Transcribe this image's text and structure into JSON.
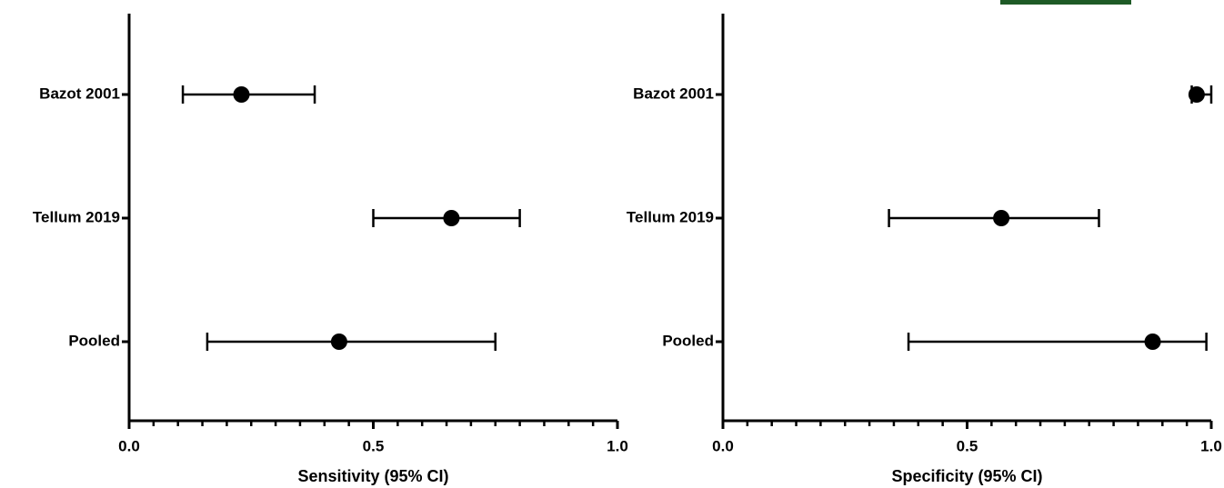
{
  "chart_data": [
    {
      "type": "forest",
      "x_label": "Sensitivity (95% CI)",
      "categories": [
        "Bazot 2001",
        "Tellum 2019",
        "Pooled"
      ],
      "values": [
        0.23,
        0.66,
        0.43
      ],
      "lower": [
        0.11,
        0.5,
        0.16
      ],
      "upper": [
        0.38,
        0.8,
        0.75
      ],
      "color": "#000000",
      "xlim": [
        0,
        1
      ],
      "xticks": [
        {
          "value": 0,
          "label": "0.0"
        },
        {
          "value": 0.5,
          "label": "0.5"
        },
        {
          "value": 1,
          "label": "1.0"
        }
      ],
      "xminorticks": [
        0.05,
        0.1,
        0.15,
        0.2,
        0.25,
        0.3,
        0.35,
        0.4,
        0.45,
        0.55,
        0.6,
        0.65,
        0.7,
        0.75,
        0.8,
        0.85,
        0.9,
        0.95
      ]
    },
    {
      "type": "forest",
      "x_label": "Specificity (95% CI)",
      "categories": [
        "Bazot 2001",
        "Tellum 2019",
        "Pooled"
      ],
      "values": [
        0.97,
        0.57,
        0.88
      ],
      "lower": [
        0.96,
        0.34,
        0.38
      ],
      "upper": [
        1.0,
        0.77,
        0.99
      ],
      "color": "#000000",
      "xlim": [
        0,
        1
      ],
      "xticks": [
        {
          "value": 0,
          "label": "0.0"
        },
        {
          "value": 0.5,
          "label": "0.5"
        },
        {
          "value": 1,
          "label": "1.0"
        }
      ],
      "xminorticks": [
        0.05,
        0.1,
        0.15,
        0.2,
        0.25,
        0.3,
        0.35,
        0.4,
        0.45,
        0.55,
        0.6,
        0.65,
        0.7,
        0.75,
        0.8,
        0.85,
        0.9,
        0.95
      ]
    }
  ]
}
